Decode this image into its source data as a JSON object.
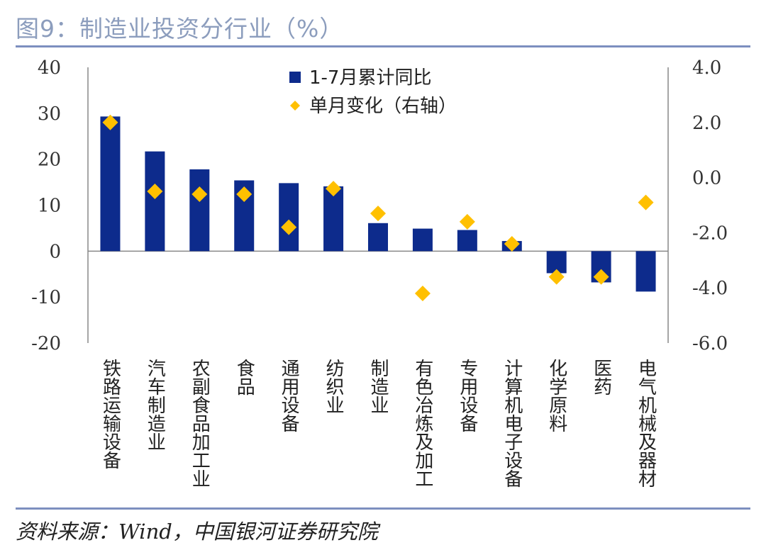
{
  "title": "图9：制造业投资分行业（%）",
  "source": "资料来源：Wind，中国银河证券研究院",
  "colors": {
    "bar": "#0d2b8c",
    "marker": "#ffc000",
    "axis": "#888888"
  },
  "chart_data": {
    "type": "bar",
    "categories": [
      "铁路运输设备",
      "汽车制造业",
      "农副食品加工业",
      "食品",
      "通用设备",
      "纺织业",
      "制造业",
      "有色冶炼及加工",
      "专用设备",
      "计算机电子设备",
      "化学原料",
      "医药",
      "电气机械及器材"
    ],
    "series": [
      {
        "name": "1-7月累计同比",
        "type": "bar",
        "axis": "left",
        "values": [
          29.3,
          21.7,
          17.8,
          15.4,
          14.8,
          14.1,
          6.1,
          4.9,
          4.6,
          2.2,
          -4.8,
          -6.8,
          -8.8
        ]
      },
      {
        "name": "单月变化（右轴）",
        "type": "scatter",
        "axis": "right",
        "values": [
          2.0,
          -0.5,
          -0.6,
          -0.6,
          -1.8,
          -0.4,
          -1.3,
          -4.2,
          -1.6,
          -2.4,
          -3.6,
          -3.6,
          -0.9
        ]
      }
    ],
    "yaxis_left": {
      "min": -20,
      "max": 40,
      "ticks": [
        "40",
        "30",
        "20",
        "10",
        "0",
        "-10",
        "-20"
      ]
    },
    "yaxis_right": {
      "min": -6,
      "max": 4,
      "ticks": [
        "4.0",
        "2.0",
        "0.0",
        "-2.0",
        "-4.0",
        "-6.0"
      ]
    },
    "legend": {
      "position": "top-center",
      "items": [
        "1-7月累计同比",
        "单月变化（右轴）"
      ]
    }
  }
}
